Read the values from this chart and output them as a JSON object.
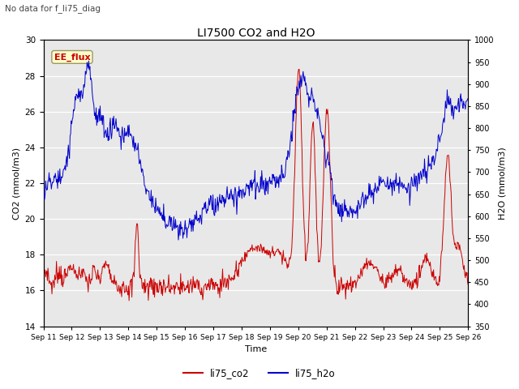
{
  "title": "LI7500 CO2 and H2O",
  "suptitle": "No data for f_li75_diag",
  "xlabel": "Time",
  "ylabel_left": "CO2 (mmol/m3)",
  "ylabel_right": "H2O (mmol/m3)",
  "ylim_left": [
    14,
    30
  ],
  "ylim_right": [
    350,
    1000
  ],
  "yticks_left": [
    14,
    16,
    18,
    20,
    22,
    24,
    26,
    28,
    30
  ],
  "yticks_right": [
    350,
    400,
    450,
    500,
    550,
    600,
    650,
    700,
    750,
    800,
    850,
    900,
    950,
    1000
  ],
  "color_co2": "#cc0000",
  "color_h2o": "#0000cc",
  "legend_label_co2": "li75_co2",
  "legend_label_h2o": "li75_h2o",
  "annotation_text": "EE_flux",
  "bg_color": "#e8e8e8",
  "grid_color": "#ffffff",
  "xticklabels": [
    "Sep 11",
    "Sep 12",
    "Sep 13",
    "Sep 14",
    "Sep 15",
    "Sep 16",
    "Sep 17",
    "Sep 18",
    "Sep 19",
    "Sep 20",
    "Sep 21",
    "Sep 22",
    "Sep 23",
    "Sep 24",
    "Sep 25",
    "Sep 26"
  ],
  "n_points": 750
}
